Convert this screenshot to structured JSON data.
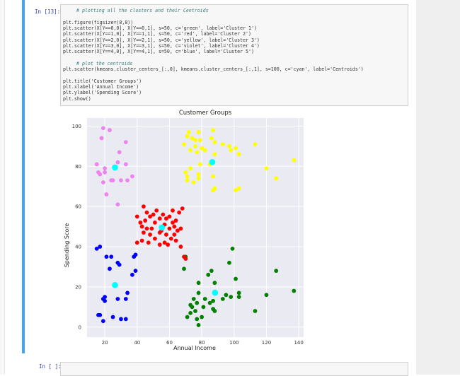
{
  "cells": [
    {
      "prompt": "In [13]:",
      "code": [
        {
          "text": "# plotting all the clusters and their Centroids",
          "type": "comment"
        },
        {
          "text": "",
          "type": "code"
        },
        {
          "text": "plt.figure(figsize=(8,8))",
          "type": "code"
        },
        {
          "text": "plt.scatter(X[Y==0,0], X[Y==0,1], s=50, c='green', label='Cluster 1')",
          "type": "code"
        },
        {
          "text": "plt.scatter(X[Y==1,0], X[Y==1,1], s=50, c='red', label='Cluster 2')",
          "type": "code"
        },
        {
          "text": "plt.scatter(X[Y==2,0], X[Y==2,1], s=50, c='yellow', label='Cluster 3')",
          "type": "code"
        },
        {
          "text": "plt.scatter(X[Y==3,0], X[Y==3,1], s=50, c='violet', label='Cluster 4')",
          "type": "code"
        },
        {
          "text": "plt.scatter(X[Y==4,0], X[Y==4,1], s=50, c='blue', label='Cluster 5')",
          "type": "code"
        },
        {
          "text": "",
          "type": "code"
        },
        {
          "text": "# plot the centroids",
          "type": "comment"
        },
        {
          "text": "plt.scatter(kmeans.cluster_centers_[:,0], kmeans.cluster_centers_[:,1], s=100, c='cyan', label='Centroids')",
          "type": "code"
        },
        {
          "text": "",
          "type": "code"
        },
        {
          "text": "plt.title('Customer Groups')",
          "type": "code"
        },
        {
          "text": "plt.xlabel('Annual Income')",
          "type": "code"
        },
        {
          "text": "plt.ylabel('Spending Score')",
          "type": "code"
        },
        {
          "text": "plt.show()",
          "type": "code"
        }
      ]
    },
    {
      "prompt": "In [ ]:"
    }
  ],
  "chart_data": {
    "type": "scatter",
    "title": "Customer Groups",
    "xlabel": "Annual Income",
    "ylabel": "Spending Score",
    "xlim": [
      9,
      143
    ],
    "ylim": [
      -5,
      104
    ],
    "xticks": [
      20,
      40,
      60,
      80,
      100,
      120,
      140
    ],
    "yticks": [
      0,
      20,
      40,
      60,
      80,
      100
    ],
    "grid": true,
    "background": "#eaeaf2",
    "series": [
      {
        "color": "#008000",
        "points": [
          [
            69,
            29
          ],
          [
            70,
            35
          ],
          [
            71,
            5
          ],
          [
            73,
            11
          ],
          [
            73,
            7
          ],
          [
            74,
            10
          ],
          [
            75,
            14
          ],
          [
            76,
            8
          ],
          [
            77,
            4
          ],
          [
            77,
            12
          ],
          [
            78,
            1
          ],
          [
            78,
            17
          ],
          [
            78,
            22
          ],
          [
            80,
            5
          ],
          [
            81,
            10
          ],
          [
            82,
            14
          ],
          [
            84,
            26
          ],
          [
            85,
            12
          ],
          [
            86,
            28
          ],
          [
            87,
            13
          ],
          [
            87,
            9
          ],
          [
            88,
            22
          ],
          [
            88,
            8
          ],
          [
            93,
            14
          ],
          [
            95,
            16
          ],
          [
            97,
            32
          ],
          [
            98,
            15
          ],
          [
            99,
            39
          ],
          [
            101,
            24
          ],
          [
            103,
            15
          ],
          [
            103,
            17
          ],
          [
            113,
            8
          ],
          [
            120,
            16
          ],
          [
            126,
            28
          ],
          [
            137,
            18
          ]
        ]
      },
      {
        "color": "#ff0000",
        "points": [
          [
            40,
            42
          ],
          [
            40,
            55
          ],
          [
            42,
            52
          ],
          [
            43,
            50
          ],
          [
            43,
            43
          ],
          [
            44,
            47
          ],
          [
            44,
            60
          ],
          [
            45,
            53
          ],
          [
            46,
            49
          ],
          [
            46,
            57
          ],
          [
            47,
            42
          ],
          [
            48,
            46
          ],
          [
            48,
            55
          ],
          [
            49,
            49
          ],
          [
            50,
            56
          ],
          [
            51,
            44
          ],
          [
            51,
            52
          ],
          [
            52,
            58
          ],
          [
            54,
            41
          ],
          [
            54,
            47
          ],
          [
            54,
            54
          ],
          [
            55,
            48
          ],
          [
            56,
            56
          ],
          [
            57,
            51
          ],
          [
            57,
            42
          ],
          [
            58,
            46
          ],
          [
            58,
            54
          ],
          [
            59,
            41
          ],
          [
            60,
            49
          ],
          [
            60,
            55
          ],
          [
            61,
            44
          ],
          [
            62,
            58
          ],
          [
            62,
            52
          ],
          [
            63,
            46
          ],
          [
            63,
            50
          ],
          [
            64,
            43
          ],
          [
            64,
            53
          ],
          [
            65,
            48
          ],
          [
            66,
            57
          ],
          [
            67,
            40
          ],
          [
            67,
            49
          ],
          [
            68,
            59
          ],
          [
            69,
            35
          ],
          [
            70,
            34
          ]
        ]
      },
      {
        "color": "#ffff00",
        "points": [
          [
            69,
            91
          ],
          [
            70,
            77
          ],
          [
            71,
            95
          ],
          [
            71,
            75
          ],
          [
            71,
            73
          ],
          [
            72,
            97
          ],
          [
            73,
            88
          ],
          [
            73,
            79
          ],
          [
            74,
            94
          ],
          [
            75,
            72
          ],
          [
            76,
            90
          ],
          [
            76,
            93
          ],
          [
            77,
            87
          ],
          [
            78,
            74
          ],
          [
            78,
            97
          ],
          [
            78,
            76
          ],
          [
            79,
            81
          ],
          [
            79,
            93
          ],
          [
            80,
            89
          ],
          [
            82,
            88
          ],
          [
            85,
            81
          ],
          [
            86,
            94
          ],
          [
            87,
            68
          ],
          [
            87,
            98
          ],
          [
            87,
            75
          ],
          [
            88,
            69
          ],
          [
            88,
            92
          ],
          [
            88,
            86
          ],
          [
            93,
            91
          ],
          [
            97,
            90
          ],
          [
            98,
            88
          ],
          [
            101,
            68
          ],
          [
            101,
            89
          ],
          [
            103,
            69
          ],
          [
            103,
            86
          ],
          [
            113,
            91
          ],
          [
            120,
            79
          ],
          [
            126,
            74
          ],
          [
            137,
            83
          ]
        ]
      },
      {
        "color": "#ee82ee",
        "points": [
          [
            15,
            81
          ],
          [
            16,
            77
          ],
          [
            17,
            76
          ],
          [
            18,
            94
          ],
          [
            19,
            72
          ],
          [
            19,
            99
          ],
          [
            20,
            77
          ],
          [
            20,
            79
          ],
          [
            21,
            66
          ],
          [
            23,
            98
          ],
          [
            24,
            73
          ],
          [
            25,
            73
          ],
          [
            28,
            82
          ],
          [
            28,
            61
          ],
          [
            29,
            87
          ],
          [
            30,
            73
          ],
          [
            33,
            92
          ],
          [
            33,
            81
          ],
          [
            34,
            73
          ],
          [
            37,
            75
          ]
        ]
      },
      {
        "color": "#0000ff",
        "points": [
          [
            15,
            39
          ],
          [
            16,
            6
          ],
          [
            17,
            40
          ],
          [
            17,
            6
          ],
          [
            19,
            3
          ],
          [
            19,
            14
          ],
          [
            20,
            15
          ],
          [
            20,
            13
          ],
          [
            21,
            35
          ],
          [
            23,
            29
          ],
          [
            24,
            35
          ],
          [
            25,
            5
          ],
          [
            28,
            14
          ],
          [
            28,
            32
          ],
          [
            29,
            31
          ],
          [
            30,
            4
          ],
          [
            33,
            4
          ],
          [
            33,
            14
          ],
          [
            34,
            17
          ],
          [
            37,
            26
          ],
          [
            38,
            35
          ],
          [
            39,
            36
          ],
          [
            39,
            28
          ]
        ]
      },
      {
        "color": "#00ffff",
        "size": 1.5,
        "points": [
          [
            26.3,
            79.4
          ],
          [
            26.3,
            20.9
          ],
          [
            55.3,
            49.5
          ],
          [
            86.5,
            82.1
          ],
          [
            88.2,
            17.1
          ]
        ]
      }
    ]
  }
}
